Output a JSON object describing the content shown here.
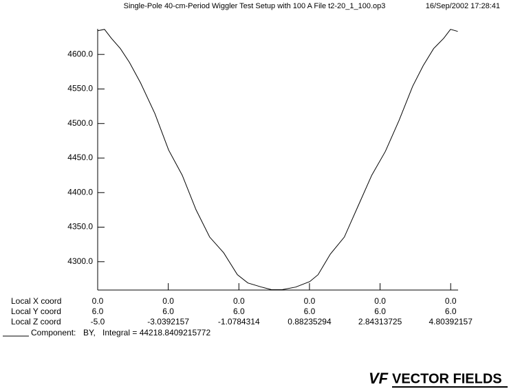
{
  "chart_data": {
    "type": "line",
    "title": "Single-Pole 40-cm-Period Wiggler Test Setup with 100 A  File t2-20_1_100.op3",
    "date": "16/Sep/2002 17:28:41",
    "x": [
      -5.0,
      -4.81,
      -4.62,
      -4.37,
      -4.12,
      -3.81,
      -3.41,
      -3.03,
      -2.65,
      -2.27,
      -1.89,
      -1.5,
      -1.12,
      -0.83,
      -0.45,
      -0.17,
      0.12,
      0.5,
      0.89,
      1.12,
      1.46,
      1.85,
      2.23,
      2.61,
      2.99,
      3.37,
      3.75,
      4.04,
      4.33,
      4.61,
      4.8,
      5.0
    ],
    "series": [
      {
        "name": "BY,",
        "color": "#000000",
        "values": [
          4634.3,
          4636.3,
          4623.4,
          4608.5,
          4588.7,
          4558.9,
          4514.3,
          4461.7,
          4425.0,
          4375.4,
          4335.7,
          4312.9,
          4281.2,
          4269.2,
          4263.3,
          4259.5,
          4259.5,
          4263.3,
          4271.2,
          4281.2,
          4310.9,
          4335.7,
          4380.4,
          4425.0,
          4459.7,
          4504.4,
          4554.0,
          4583.7,
          4608.5,
          4623.4,
          4636.3,
          4633.3
        ]
      }
    ],
    "xlim": [
      -5.0,
      5.01
    ],
    "ylim": [
      4259,
      4637
    ],
    "xticks": [
      {
        "value": -5,
        "label": "-5.0"
      },
      -3.0392157,
      -1.0784314,
      0.88235294,
      2.84313725,
      4.80392157
    ],
    "yticks": [
      {
        "value": 4300,
        "label": "4300.0"
      },
      {
        "value": 4350,
        "label": "4350.0"
      },
      {
        "value": 4400,
        "label": "4400.0"
      },
      {
        "value": 4450,
        "label": "4450.0"
      },
      {
        "value": 4500,
        "label": "4500.0"
      },
      {
        "value": 4550,
        "label": "4550.0"
      },
      {
        "value": 4600,
        "label": "4600.0"
      }
    ],
    "x_coord_title": "Local X coord",
    "x_coord_labels": [
      "0.0",
      "0.0",
      "0.0",
      "0.0",
      "0.0",
      "0.0"
    ],
    "y_coord_title": "Local Y coord",
    "y_coord_labels": [
      "6.0",
      "6.0",
      "6.0",
      "6.0",
      "6.0",
      "6.0"
    ],
    "z_coord_title": "Local Z coord",
    "legend_prefix": "Component:",
    "integral_text": "Integral = 44218.8409215772",
    "logo_mark": "VF",
    "logo_text": "VECTOR FIELDS"
  }
}
